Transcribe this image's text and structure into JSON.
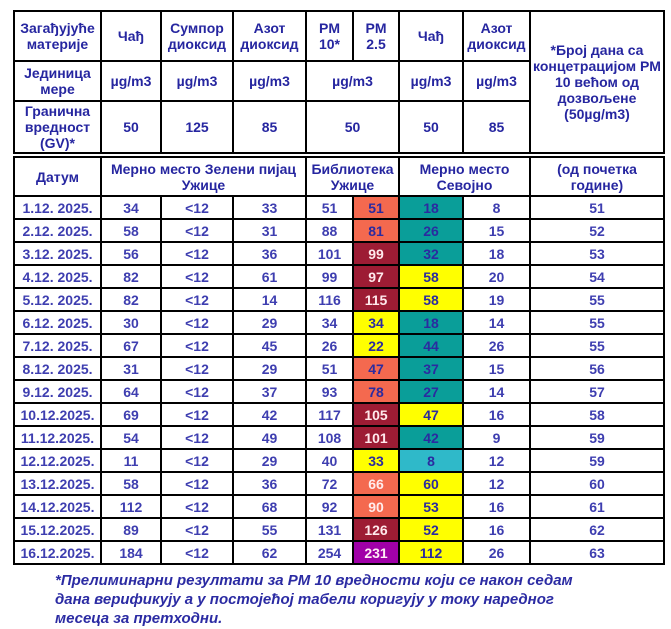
{
  "colors": {
    "salmon": {
      "bg": "#F4694F",
      "fg": "#2B2BA0"
    },
    "salmon_white": {
      "bg": "#F4694F",
      "fg": "#FFECEC"
    },
    "maroon": {
      "bg": "#9D1C34",
      "fg": "#FFE9EC"
    },
    "yellow": {
      "bg": "#FFFF00",
      "fg": "#2B2BA0"
    },
    "teal": {
      "bg": "#0A9E99",
      "fg": "#2B2BA0"
    },
    "cyan": {
      "bg": "#2FB9C9",
      "fg": "#2B2BA0"
    },
    "purple": {
      "bg": "#A000A8",
      "fg": "#FFECF5"
    }
  },
  "table": {
    "row1": {
      "label": "Загађујуће материје",
      "cols": [
        "Чађ",
        "Сумпор диоксид",
        "Азот диоксид",
        "PM 10*",
        "PM 2.5",
        "Чађ",
        "Азот диоксид"
      ],
      "days_header": "*Број дана са концетрацијом PM 10 већом од дозвољене (50µg/m3)"
    },
    "row2": {
      "label": "Јединица мере",
      "units": [
        "µg/m3",
        "µg/m3",
        "µg/m3",
        "µg/m3",
        "µg/m3",
        "µg/m3"
      ]
    },
    "row3": {
      "label": "Гранична вредност (GV)*",
      "limits": [
        "50",
        "125",
        "85",
        "50",
        "50",
        "85"
      ]
    },
    "row4": {
      "label": "Датум",
      "stations": [
        "Мерно место Зелени пијац Ужице",
        "Библиотека Ужице",
        "Мерно место Севојно"
      ],
      "days_subheader": "(од почетка године)"
    }
  },
  "rows": [
    {
      "date": "1.12. 2025.",
      "zp": [
        "34",
        "<12",
        "33"
      ],
      "pm10": "51",
      "pm25": {
        "v": "51",
        "c": "salmon"
      },
      "soot": {
        "v": "18",
        "c": "teal"
      },
      "no2": "8",
      "days": "51"
    },
    {
      "date": "2.12. 2025.",
      "zp": [
        "58",
        "<12",
        "31"
      ],
      "pm10": "88",
      "pm25": {
        "v": "81",
        "c": "salmon"
      },
      "soot": {
        "v": "26",
        "c": "teal"
      },
      "no2": "15",
      "days": "52"
    },
    {
      "date": "3.12. 2025.",
      "zp": [
        "56",
        "<12",
        "36"
      ],
      "pm10": "101",
      "pm25": {
        "v": "99",
        "c": "maroon"
      },
      "soot": {
        "v": "32",
        "c": "teal"
      },
      "no2": "18",
      "days": "53"
    },
    {
      "date": "4.12. 2025.",
      "zp": [
        "82",
        "<12",
        "61"
      ],
      "pm10": "99",
      "pm25": {
        "v": "97",
        "c": "maroon"
      },
      "soot": {
        "v": "58",
        "c": "yellow"
      },
      "no2": "20",
      "days": "54"
    },
    {
      "date": "5.12. 2025.",
      "zp": [
        "82",
        "<12",
        "14"
      ],
      "pm10": "116",
      "pm25": {
        "v": "115",
        "c": "maroon"
      },
      "soot": {
        "v": "58",
        "c": "yellow"
      },
      "no2": "19",
      "days": "55"
    },
    {
      "date": "6.12. 2025.",
      "zp": [
        "30",
        "<12",
        "29"
      ],
      "pm10": "34",
      "pm25": {
        "v": "34",
        "c": "yellow"
      },
      "soot": {
        "v": "18",
        "c": "teal"
      },
      "no2": "14",
      "days": "55"
    },
    {
      "date": "7.12. 2025.",
      "zp": [
        "67",
        "<12",
        "45"
      ],
      "pm10": "26",
      "pm25": {
        "v": "22",
        "c": "yellow"
      },
      "soot": {
        "v": "44",
        "c": "teal"
      },
      "no2": "26",
      "days": "55"
    },
    {
      "date": "8.12. 2025.",
      "zp": [
        "31",
        "<12",
        "29"
      ],
      "pm10": "51",
      "pm25": {
        "v": "47",
        "c": "salmon"
      },
      "soot": {
        "v": "37",
        "c": "teal"
      },
      "no2": "15",
      "days": "56"
    },
    {
      "date": "9.12. 2025.",
      "zp": [
        "64",
        "<12",
        "37"
      ],
      "pm10": "93",
      "pm25": {
        "v": "78",
        "c": "salmon"
      },
      "soot": {
        "v": "27",
        "c": "teal"
      },
      "no2": "14",
      "days": "57"
    },
    {
      "date": "10.12.2025.",
      "zp": [
        "69",
        "<12",
        "42"
      ],
      "pm10": "117",
      "pm25": {
        "v": "105",
        "c": "maroon"
      },
      "soot": {
        "v": "47",
        "c": "yellow"
      },
      "no2": "16",
      "days": "58"
    },
    {
      "date": "11.12.2025.",
      "zp": [
        "54",
        "<12",
        "49"
      ],
      "pm10": "108",
      "pm25": {
        "v": "101",
        "c": "maroon"
      },
      "soot": {
        "v": "42",
        "c": "teal"
      },
      "no2": "9",
      "days": "59"
    },
    {
      "date": "12.12.2025.",
      "zp": [
        "11",
        "<12",
        "29"
      ],
      "pm10": "40",
      "pm25": {
        "v": "33",
        "c": "yellow"
      },
      "soot": {
        "v": "8",
        "c": "cyan"
      },
      "no2": "12",
      "days": "59"
    },
    {
      "date": "13.12.2025.",
      "zp": [
        "58",
        "<12",
        "36"
      ],
      "pm10": "72",
      "pm25": {
        "v": "66",
        "c": "salmon_white"
      },
      "soot": {
        "v": "60",
        "c": "yellow"
      },
      "no2": "12",
      "days": "60"
    },
    {
      "date": "14.12.2025.",
      "zp": [
        "112",
        "<12",
        "68"
      ],
      "pm10": "92",
      "pm25": {
        "v": "90",
        "c": "salmon_white"
      },
      "soot": {
        "v": "53",
        "c": "yellow"
      },
      "no2": "16",
      "days": "61"
    },
    {
      "date": "15.12.2025.",
      "zp": [
        "89",
        "<12",
        "55"
      ],
      "pm10": "131",
      "pm25": {
        "v": "126",
        "c": "maroon"
      },
      "soot": {
        "v": "52",
        "c": "yellow"
      },
      "no2": "16",
      "days": "62"
    },
    {
      "date": "16.12.2025.",
      "zp": [
        "184",
        "<12",
        "62"
      ],
      "pm10": "254",
      "pm25": {
        "v": "231",
        "c": "purple"
      },
      "soot": {
        "v": "112",
        "c": "yellow"
      },
      "no2": "26",
      "days": "63"
    }
  ],
  "footer_note": "*Прелиминарни резултати за PM 10 вредности који се након седам дана верификују а у постојећој табели коригују у току наредног месеца за претходни."
}
